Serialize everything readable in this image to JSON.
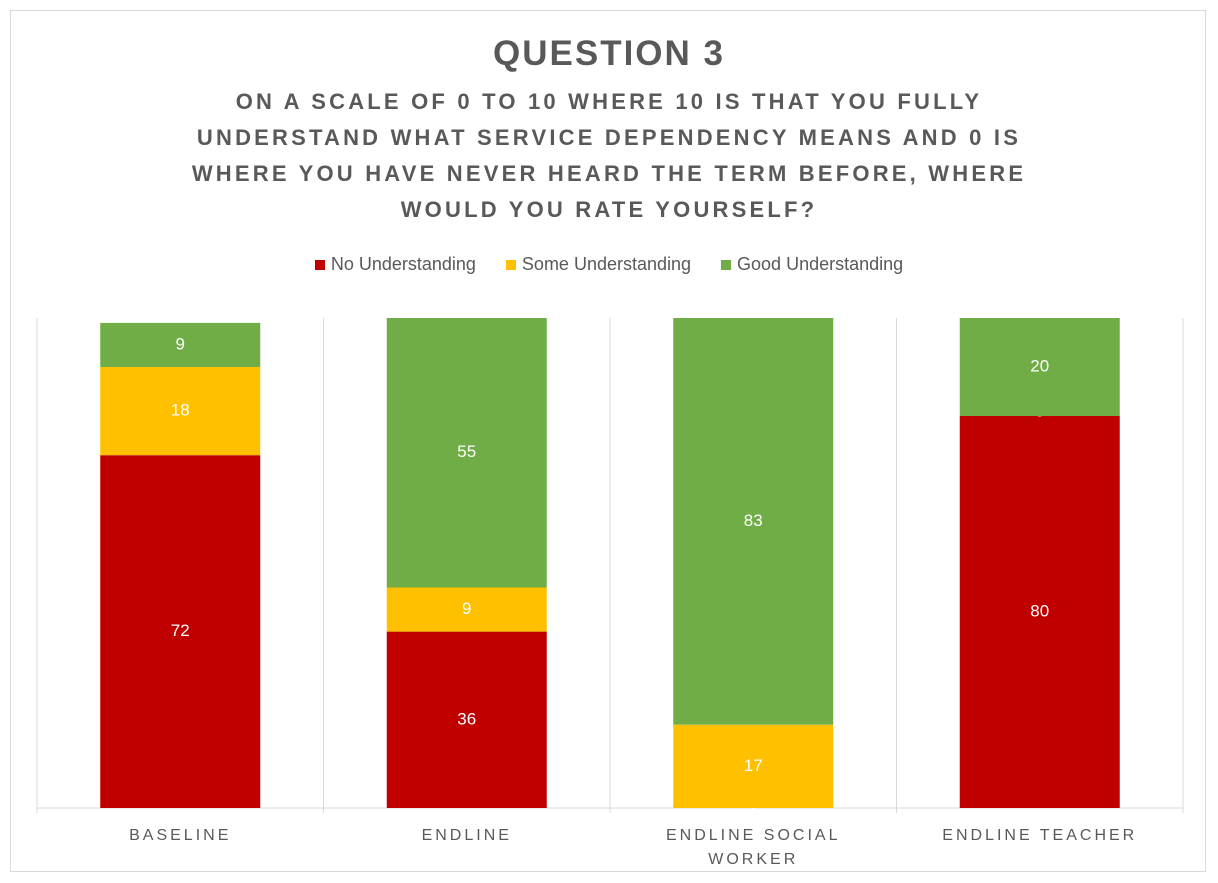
{
  "chart_data": {
    "type": "stacked_bar",
    "title": "QUESTION 3",
    "subtitle": "ON A SCALE OF 0 TO 10 WHERE 10 IS THAT YOU FULLY UNDERSTAND WHAT SERVICE DEPENDENCY MEANS AND 0 IS WHERE YOU HAVE NEVER HEARD THE TERM BEFORE, WHERE WOULD YOU RATE YOURSELF?",
    "categories": [
      "BASELINE",
      "ENDLINE",
      "ENDLINE SOCIAL WORKER",
      "ENDLINE TEACHER"
    ],
    "series": [
      {
        "name": "No Understanding",
        "color": "#c00000",
        "values": [
          72,
          36,
          0,
          80
        ]
      },
      {
        "name": "Some Understanding",
        "color": "#ffc000",
        "values": [
          18,
          9,
          17,
          0
        ]
      },
      {
        "name": "Good Understanding",
        "color": "#70ad47",
        "values": [
          9,
          55,
          83,
          20
        ]
      }
    ],
    "ylim": [
      0,
      100
    ],
    "legend": "top"
  }
}
